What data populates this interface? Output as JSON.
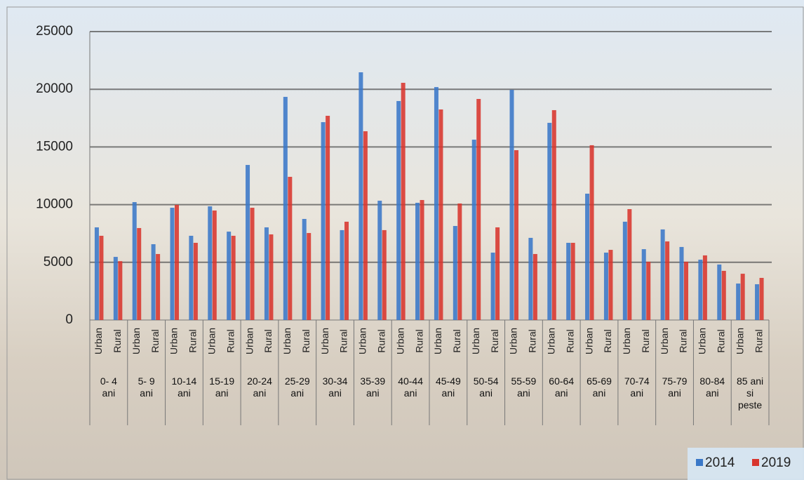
{
  "chart_data": {
    "type": "bar",
    "categories": [
      "Urban",
      "Rural",
      "Urban",
      "Rural",
      "Urban",
      "Rural",
      "Urban",
      "Rural",
      "Urban",
      "Rural",
      "Urban",
      "Rural",
      "Urban",
      "Rural",
      "Urban",
      "Rural",
      "Urban",
      "Rural",
      "Urban",
      "Rural",
      "Urban",
      "Rural",
      "Urban",
      "Rural",
      "Urban",
      "Rural",
      "Urban",
      "Rural",
      "Urban",
      "Rural",
      "Urban",
      "Rural",
      "Urban",
      "Rural",
      "Urban",
      "Rural"
    ],
    "groups": [
      "0- 4 ani",
      "5- 9 ani",
      "10-14 ani",
      "15-19 ani",
      "20-24 ani",
      "25-29 ani",
      "30-34 ani",
      "35-39 ani",
      "40-44 ani",
      "45-49 ani",
      "50-54 ani",
      "55-59 ani",
      "60-64 ani",
      "65-69 ani",
      "70-74 ani",
      "75-79 ani",
      "80-84 ani",
      "85 ani si peste"
    ],
    "series": [
      {
        "name": "2014",
        "color": "#3a78c8",
        "values": [
          8030,
          5470,
          10220,
          6570,
          9730,
          7300,
          9850,
          7660,
          13440,
          8030,
          19340,
          8760,
          17150,
          7790,
          21470,
          10340,
          18980,
          10160,
          20190,
          8150,
          15630,
          5840,
          19950,
          7120,
          17090,
          6690,
          10950,
          5840,
          8520,
          6140,
          7850,
          6330,
          5230,
          4810,
          3160,
          3100
        ]
      },
      {
        "name": "2019",
        "color": "#d8352e",
        "values": [
          7300,
          5100,
          7970,
          5720,
          9980,
          6690,
          9490,
          7300,
          9730,
          7420,
          12410,
          7540,
          17700,
          8520,
          16360,
          7790,
          20560,
          10400,
          18250,
          10100,
          19160,
          8030,
          14720,
          5720,
          18190,
          6690,
          15150,
          6080,
          9610,
          5050,
          6810,
          5050,
          5600,
          4260,
          4010,
          3650
        ]
      }
    ],
    "ylim": [
      0,
      25000
    ],
    "yticks": [
      0,
      5000,
      10000,
      15000,
      20000,
      25000
    ],
    "grid": true,
    "legend": "bottom-right"
  }
}
